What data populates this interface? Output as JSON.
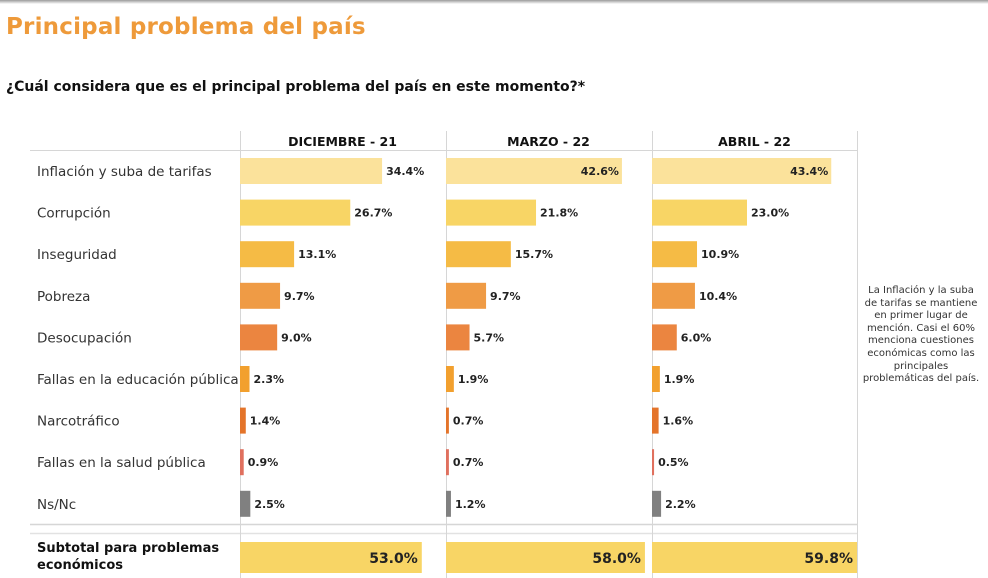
{
  "title": "Principal problema del país",
  "question": "¿Cuál considera que es el principal problema del país en este momento?*",
  "note": "La Inflación y la suba de tarifas se mantiene en primer lugar de mención. Casi el 60% menciona cuestiones económicas como las principales problemáticas del país.",
  "subtotal_label": "Subtotal para problemas económicos",
  "colors": {
    "title": "#EE9A3A",
    "inflacion": "#FBE29B",
    "corrupcion": "#F8D565",
    "inseguridad": "#F5BB45",
    "pobreza": "#EF9B45",
    "desocupacion": "#EB8540",
    "educacion": "#F2A02E",
    "narcotrafico": "#E4742A",
    "salud": "#E0705E",
    "nsnc": "#808080",
    "subtotal": "#F8D565"
  },
  "chart_data": {
    "type": "bar",
    "orientation": "horizontal",
    "title": "Principal problema del país",
    "subtitle": "¿Cuál considera que es el principal problema del país en este momento?*",
    "categories": [
      "Inflación y suba de tarifas",
      "Corrupción",
      "Inseguridad",
      "Pobreza",
      "Desocupación",
      "Fallas en la educación pública",
      "Narcotráfico",
      "Fallas en la salud pública",
      "Ns/Nc"
    ],
    "category_colors": [
      "inflacion",
      "corrupcion",
      "inseguridad",
      "pobreza",
      "desocupacion",
      "educacion",
      "narcotrafico",
      "salud",
      "nsnc"
    ],
    "series": [
      {
        "name": "DICIEMBRE - 21",
        "values": [
          34.4,
          26.7,
          13.1,
          9.7,
          9.0,
          2.3,
          1.4,
          0.9,
          2.5
        ],
        "labels": [
          "34.4%",
          "26.7%",
          "13.1%",
          "9.7%",
          "9.0%",
          "2.3%",
          "1.4%",
          "0.9%",
          "2.5%"
        ]
      },
      {
        "name": "MARZO - 22",
        "values": [
          42.6,
          21.8,
          15.7,
          9.7,
          5.7,
          1.9,
          0.7,
          0.7,
          1.2
        ],
        "labels": [
          "42.6%",
          "21.8%",
          "15.7%",
          "9.7%",
          "5.7%",
          "1.9%",
          "0.7%",
          "0.7%",
          "1.2%"
        ]
      },
      {
        "name": "ABRIL - 22",
        "values": [
          43.4,
          23.0,
          10.9,
          10.4,
          6.0,
          1.9,
          1.6,
          0.5,
          2.2
        ],
        "labels": [
          "43.4%",
          "23.0%",
          "10.9%",
          "10.4%",
          "6.0%",
          "1.9%",
          "1.6%",
          "0.5%",
          "2.2%"
        ]
      }
    ],
    "subtotal": {
      "label": "Subtotal para problemas económicos",
      "values": [
        53.0,
        58.0,
        59.8
      ],
      "labels": [
        "53.0%",
        "58.0%",
        "59.8%"
      ]
    },
    "xlim": [
      0,
      50
    ],
    "unit": "%",
    "grid": false,
    "legend": "none"
  }
}
